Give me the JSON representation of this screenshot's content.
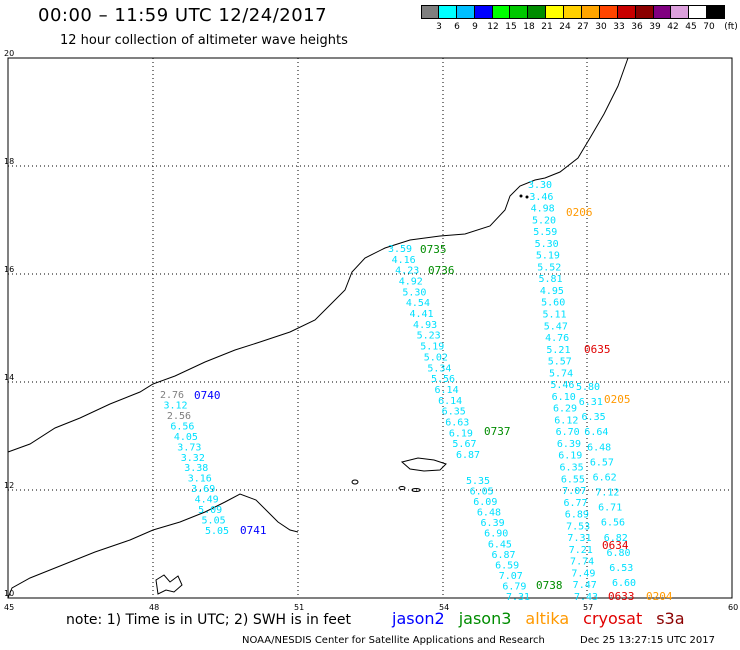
{
  "header": {
    "title": "00:00 – 11:59 UTC 12/24/2017",
    "subtitle": "12 hour collection of altimeter wave heights"
  },
  "legend": {
    "colors": [
      "#7f7f7f",
      "#00ffff",
      "#00bfff",
      "#0000ff",
      "#00ff00",
      "#00c800",
      "#008c00",
      "#ffff00",
      "#ffd000",
      "#ffa500",
      "#ff4500",
      "#c80000",
      "#8b0000",
      "#800080",
      "#dda0dd",
      "#ffffff",
      "#000000"
    ],
    "labels": [
      "3",
      "6",
      "9",
      "12",
      "15",
      "18",
      "21",
      "24",
      "27",
      "30",
      "33",
      "36",
      "39",
      "42",
      "45",
      "70",
      "(ft)"
    ]
  },
  "axes": {
    "y_labels": [
      "20",
      "18",
      "16",
      "14",
      "12",
      "10"
    ],
    "x_labels": [
      "45",
      "48",
      "51",
      "54",
      "57",
      "60"
    ]
  },
  "tracks": [
    {
      "sat": "jason2",
      "color": "#00e0ff",
      "values": [
        "2.76",
        "3.12",
        "2.56",
        "6.56",
        "4.05",
        "3.73",
        "3.32",
        "3.38",
        "3.16",
        "3.69",
        "4.49",
        "5.09",
        "5.05",
        "5.05"
      ],
      "time_start": "0740",
      "time_end": "0741"
    },
    {
      "sat": "jason3",
      "color": "#00e0ff",
      "values": [
        "3.59",
        "4.16",
        "4.23",
        "4.92",
        "5.30",
        "4.54",
        "4.41",
        "4.93",
        "5.23",
        "5.19",
        "5.02",
        "5.34",
        "5.56",
        "6.14",
        "6.14",
        "6.35",
        "6.63",
        "6.19",
        "5.67",
        "6.87"
      ],
      "time_start": "0735",
      "time_end": "0737",
      "time_mid": "0736"
    },
    {
      "sat": "jason3",
      "color": "#00e0ff",
      "values": [
        "5.35",
        "6.05",
        "6.09",
        "6.48",
        "6.39",
        "6.90",
        "6.45",
        "6.87",
        "6.59",
        "7.07",
        "6.79",
        "7.31"
      ],
      "time_end": "0738"
    },
    {
      "sat": "altika",
      "color": "#00e0ff",
      "values": [
        "3.30",
        "3.46",
        "4.98",
        "5.20",
        "5.59",
        "5.30",
        "5.19",
        "5.52",
        "5.81",
        "4.95",
        "5.60",
        "5.11",
        "5.47",
        "4.76",
        "5.21",
        "5.57",
        "5.74",
        "5.46",
        "6.10",
        "6.29",
        "6.12",
        "6.70",
        "6.39",
        "6.19",
        "6.35",
        "6.55",
        "7.07",
        "6.77",
        "6.89",
        "7.53",
        "7.31",
        "7.21",
        "7.74",
        "7.49",
        "7.47",
        "7.43"
      ],
      "time_start": "0206",
      "time_end": "0204"
    },
    {
      "sat": "cryosat",
      "color": "#00e0ff",
      "values": [
        "5.80",
        "6.31",
        "6.35",
        "6.64",
        "6.48",
        "6.57",
        "6.62",
        "7.12",
        "6.71",
        "6.56",
        "6.82",
        "6.80",
        "6.53",
        "6.60"
      ],
      "time_start": "0205",
      "time_mid": "0635",
      "time_a": "0634",
      "time_end": "0633"
    }
  ],
  "note": "note: 1) Time is in UTC; 2) SWH is in feet",
  "satellites": [
    {
      "name": "jason2",
      "color": "#0000ff"
    },
    {
      "name": "jason3",
      "color": "#008c00"
    },
    {
      "name": "altika",
      "color": "#ff9900"
    },
    {
      "name": "cryosat",
      "color": "#e00000"
    },
    {
      "name": "s3a",
      "color": "#8b0000"
    }
  ],
  "credit": "NOAA/NESDIS Center for Satellite Applications and Research",
  "timestamp": "Dec 25 13:27:15 UTC 2017"
}
